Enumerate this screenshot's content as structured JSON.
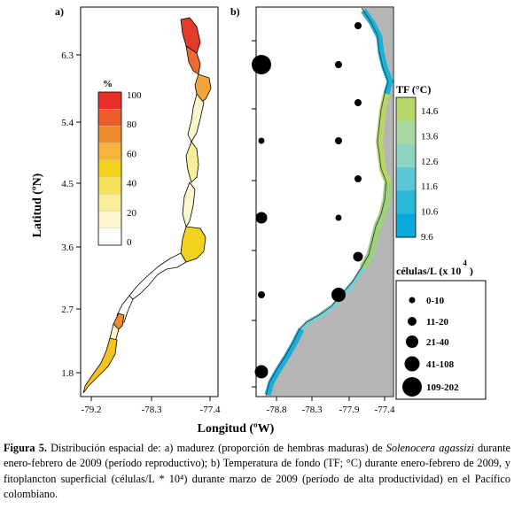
{
  "panel_a": {
    "label": "a)",
    "y_ticks": [
      "6.3",
      "5.4",
      "4.5",
      "3.6",
      "2.7",
      "1.8"
    ],
    "x_ticks": [
      "-79.2",
      "-78.3",
      "-77.4"
    ],
    "legend_title": "%",
    "legend_labels": [
      "100",
      "80",
      "60",
      "40",
      "20",
      "0"
    ],
    "legend_colors": [
      "#e8302a",
      "#ec5d2c",
      "#f08a2e",
      "#f4b53a",
      "#f2d21c",
      "#f6e25a",
      "#f8ee98",
      "#fbf6cc",
      "#ffffff"
    ]
  },
  "panel_b": {
    "label": "b)",
    "x_ticks": [
      "-78.8",
      "-78.3",
      "-77.9",
      "-77.4"
    ],
    "tf_title": "TF (°C)",
    "tf_labels": [
      "14.6",
      "13.6",
      "12.6",
      "11.6",
      "10.6",
      "9.6"
    ],
    "tf_colors": [
      "#b7d66a",
      "#a8d8a0",
      "#8ed4c2",
      "#5cc6d8",
      "#2ab8d8",
      "#0aa8dc"
    ],
    "cell_title": "células/L (x 10",
    "cell_exponent": "4",
    "cell_close": ")",
    "cell_legend": [
      "0-10",
      "11-20",
      "21-40",
      "41-108",
      "109-202"
    ]
  },
  "axes": {
    "ylabel": "Latitud (ºN)",
    "xlabel": "Longitud (ºW)"
  },
  "caption": {
    "fig_label": "Figura 5.",
    "text1": " Distribución espacial de: a) madurez (proporción de hembras maduras) de ",
    "species": "Solenocera agassizi",
    "text2": " durante enero-febrero de 2009 (período reproductivo); b) Temperatura de fondo (TF; °C) durante enero-febrero de 2009, y fitoplancton superficial (células/L * 10⁴) durante marzo de 2009 (período de alta productividad) en el Pacífico colombiano."
  }
}
